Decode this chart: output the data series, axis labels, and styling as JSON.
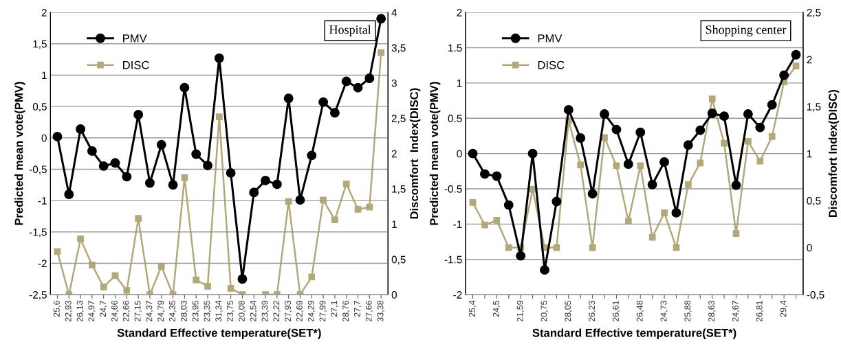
{
  "chart_data": [
    {
      "type": "line",
      "xlabel": "Standard Effective temperature(SET*)",
      "ylabel": "Predicted mean vote(PMV)",
      "y2label": "Discomfort  Index(DISC)",
      "annotations": [
        "Hospital"
      ],
      "categories": [
        "25,6",
        "22,93",
        "26,13",
        "24,97",
        "24,7",
        "24,66",
        "22,66",
        "27,15",
        "24,37",
        "24,79",
        "24,35",
        "28,03",
        "23,95",
        "23,35",
        "31,34",
        "23,75",
        "20,08",
        "22,54",
        "23,39",
        "22,22",
        "27,93",
        "22,69",
        "24,29",
        "27,99",
        "27,1",
        "28,76",
        "27,7",
        "27,66",
        "33,38"
      ],
      "series": [
        {
          "name": "PMV",
          "color": "#000000",
          "marker": "circle",
          "values": [
            0.02,
            -0.9,
            0.14,
            -0.21,
            -0.45,
            -0.4,
            -0.62,
            0.37,
            -0.72,
            -0.11,
            -0.75,
            0.8,
            -0.26,
            -0.44,
            1.27,
            -0.56,
            -2.25,
            -0.87,
            -0.68,
            -0.74,
            0.63,
            -0.99,
            -0.28,
            0.57,
            0.4,
            0.9,
            0.8,
            0.95,
            1.9
          ]
        },
        {
          "name": "DISC",
          "color": "#b3a878",
          "marker": "square",
          "axis": "y2",
          "values": [
            0.61,
            0,
            0.79,
            0.42,
            0.11,
            0.27,
            0.06,
            1.08,
            0,
            0.4,
            0,
            1.66,
            0.21,
            0.12,
            2.52,
            0.09,
            0,
            null,
            0,
            0,
            1.32,
            0,
            0.25,
            1.34,
            1.06,
            1.57,
            1.21,
            1.24,
            3.43
          ]
        }
      ],
      "ylim": [
        -2.5,
        2
      ],
      "yticks": [
        {
          "value": -2.5,
          "label": "-2,5"
        },
        -2,
        {
          "value": -1.5,
          "label": "-1,5"
        },
        -1,
        {
          "value": -0.5,
          "label": "-0,5"
        },
        0,
        {
          "value": 0.5,
          "label": "0,5"
        },
        1,
        {
          "value": 1.5,
          "label": "1,5"
        },
        2
      ],
      "y2lim": [
        0,
        4
      ],
      "y2ticks": [
        0,
        {
          "value": 0.5,
          "label": "0,5"
        },
        1,
        {
          "value": 1.5,
          "label": "1,5"
        },
        2,
        {
          "value": 2.5,
          "label": "2,5"
        },
        3,
        {
          "value": 3.5,
          "label": "3,5"
        },
        4
      ],
      "grid": "y",
      "legend": "top left"
    },
    {
      "type": "line",
      "xlabel": "Standard Effective temperature(SET*)",
      "ylabel": "Predicted mean vote(PMV)",
      "y2label": "Discomfort Index(DISC)",
      "annotations": [
        "Shopping center"
      ],
      "categories": [
        "25,4",
        null,
        "24,5",
        null,
        "21,59",
        null,
        "20,75",
        null,
        "28,05",
        null,
        "26,23",
        null,
        "26,61",
        null,
        "26,48",
        null,
        "24,73",
        null,
        "25,88",
        null,
        "28,63",
        null,
        "24,67",
        null,
        "26,81",
        null,
        "29,4",
        null
      ],
      "series": [
        {
          "name": "PMV",
          "color": "#000000",
          "marker": "circle",
          "values": [
            0,
            -0.29,
            -0.32,
            -0.73,
            -1.45,
            0,
            -1.65,
            -0.68,
            0.62,
            0.22,
            -0.57,
            0.56,
            0.34,
            -0.15,
            0.3,
            -0.44,
            -0.12,
            -0.84,
            0.12,
            0.33,
            0.57,
            0.53,
            -0.45,
            0.56,
            0.37,
            0.69,
            1.11,
            1.4
          ]
        },
        {
          "name": "DISC",
          "color": "#b3a878",
          "marker": "square",
          "axis": "y2",
          "values": [
            0.48,
            0.24,
            0.29,
            0,
            0,
            0.62,
            0,
            0,
            1.35,
            0.88,
            0,
            1.17,
            0.87,
            0.28,
            0.87,
            0.11,
            0.37,
            0,
            0.67,
            0.9,
            1.58,
            1.11,
            0.15,
            1.13,
            0.92,
            1.18,
            1.76,
            1.93
          ]
        }
      ],
      "ylim": [
        -2,
        2
      ],
      "yticks": [
        -2,
        {
          "value": -1.5,
          "label": "-1.5"
        },
        -1,
        {
          "value": -0.5,
          "label": "-0.5"
        },
        0,
        {
          "value": 0.5,
          "label": "0.5"
        },
        1,
        {
          "value": 1.5,
          "label": "1.5"
        },
        2
      ],
      "y2lim": [
        -0.5,
        2.5
      ],
      "y2ticks": [
        {
          "value": -0.5,
          "label": "-0,5"
        },
        0,
        {
          "value": 0.5,
          "label": "0,5"
        },
        1,
        {
          "value": 1.5,
          "label": "1,5"
        },
        2,
        {
          "value": 2.5,
          "label": "2,5"
        }
      ],
      "grid": "y",
      "legend": "top left"
    }
  ]
}
